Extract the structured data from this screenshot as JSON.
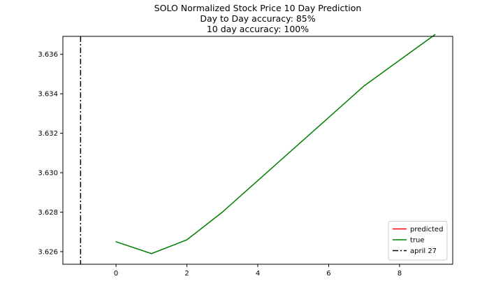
{
  "chart_data": {
    "type": "line",
    "title_lines": [
      "SOLO Normalized Stock Price 10 Day Prediction",
      "Day to Day accuracy: 85%",
      "10 day accuracy: 100%"
    ],
    "xlabel": "",
    "ylabel": "",
    "xlim": [
      -1.5,
      9.5
    ],
    "ylim": [
      3.62536,
      3.63691
    ],
    "x_ticks": [
      0,
      2,
      4,
      6,
      8
    ],
    "y_ticks": [
      3.626,
      3.628,
      3.63,
      3.632,
      3.634,
      3.636
    ],
    "x_tick_labels": [
      "0",
      "2",
      "4",
      "6",
      "8"
    ],
    "y_tick_labels": [
      "3.626",
      "3.628",
      "3.630",
      "3.632",
      "3.634",
      "3.636"
    ],
    "grid": false,
    "legend_position": "lower-right",
    "series": [
      {
        "name": "predicted",
        "color": "#ff0000",
        "style": "solid",
        "x": [],
        "y": []
      },
      {
        "name": "true",
        "color": "#008000",
        "style": "solid",
        "x": [
          0,
          1,
          2,
          3,
          4,
          5,
          6,
          7,
          8,
          9
        ],
        "y": [
          3.6265,
          3.6259,
          3.6266,
          3.628,
          3.6296,
          3.6312,
          3.6328,
          3.6344,
          3.6357,
          3.637
        ]
      }
    ],
    "vertical_lines": [
      {
        "name": "april 27",
        "x": -1,
        "color": "#000000",
        "style": "dashdot"
      }
    ]
  }
}
